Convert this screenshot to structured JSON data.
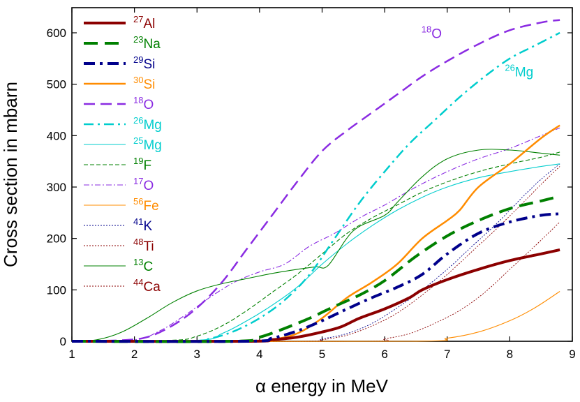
{
  "chart_data": {
    "type": "line",
    "xlabel": "α energy in MeV",
    "ylabel": "Cross section in mbarn",
    "xlim": [
      1,
      9
    ],
    "ylim": [
      0,
      650
    ],
    "xticks": [
      1,
      2,
      3,
      4,
      5,
      6,
      7,
      8,
      9
    ],
    "yticks": [
      0,
      100,
      200,
      300,
      400,
      500,
      600
    ],
    "grid": false,
    "legend_placement": "top-left",
    "series": [
      {
        "name": "Al",
        "mass": "27",
        "color": "#8b0000",
        "style": "solid-thick",
        "x": [
          1,
          3.8,
          4.2,
          4.6,
          5.0,
          5.3,
          5.6,
          6.0,
          6.4,
          6.6,
          7.0,
          7.5,
          8.0,
          8.5,
          8.8
        ],
        "y": [
          0,
          0,
          3,
          8,
          18,
          28,
          45,
          63,
          85,
          100,
          120,
          140,
          157,
          170,
          178
        ]
      },
      {
        "name": "Na",
        "mass": "23",
        "color": "#008000",
        "style": "long-dash-thick",
        "x": [
          1,
          3.6,
          4.0,
          4.4,
          4.8,
          5.2,
          5.6,
          6.0,
          6.5,
          7.0,
          7.5,
          8.0,
          8.5,
          8.8
        ],
        "y": [
          0,
          0,
          8,
          25,
          45,
          68,
          90,
          118,
          165,
          205,
          235,
          258,
          273,
          282
        ]
      },
      {
        "name": "Si",
        "mass": "29",
        "color": "#00008b",
        "style": "dashdot-thick",
        "x": [
          1,
          3.8,
          4.2,
          4.6,
          5.0,
          5.4,
          5.8,
          6.2,
          6.6,
          7.0,
          7.5,
          8.0,
          8.5,
          8.8
        ],
        "y": [
          0,
          0,
          6,
          20,
          40,
          63,
          85,
          105,
          130,
          170,
          210,
          232,
          245,
          248
        ]
      },
      {
        "name": "Si",
        "mass": "30",
        "color": "#ff8c00",
        "style": "solid",
        "x": [
          1,
          3.9,
          4.2,
          4.6,
          5.0,
          5.4,
          5.8,
          6.2,
          6.6,
          7.0,
          7.2,
          7.5,
          8.0,
          8.5,
          8.8
        ],
        "y": [
          0,
          0,
          3,
          15,
          45,
          85,
          115,
          150,
          200,
          235,
          255,
          300,
          345,
          395,
          420
        ]
      },
      {
        "name": "O",
        "mass": "18",
        "color": "#8a2be2",
        "style": "long-dash",
        "x": [
          1,
          1.8,
          2.2,
          2.6,
          3.0,
          3.4,
          3.8,
          4.2,
          4.6,
          5.0,
          5.4,
          5.8,
          6.2,
          6.6,
          7.0,
          7.5,
          8.0,
          8.5,
          8.8
        ],
        "y": [
          0,
          2,
          8,
          30,
          65,
          115,
          180,
          245,
          310,
          370,
          410,
          445,
          480,
          515,
          545,
          578,
          605,
          620,
          625
        ]
      },
      {
        "name": "Mg",
        "mass": "26",
        "color": "#00cdcd",
        "style": "dashdot",
        "x": [
          1,
          2.8,
          3.2,
          3.6,
          4.0,
          4.4,
          4.8,
          5.2,
          5.6,
          6.0,
          6.4,
          6.8,
          7.2,
          7.6,
          8.0,
          8.4,
          8.8
        ],
        "y": [
          0,
          0,
          5,
          20,
          45,
          80,
          130,
          200,
          270,
          330,
          385,
          430,
          475,
          515,
          550,
          575,
          600
        ]
      },
      {
        "name": "Mg",
        "mass": "25",
        "color": "#00cdcd",
        "style": "thin",
        "x": [
          1,
          3.0,
          3.4,
          3.8,
          4.2,
          4.6,
          5.0,
          5.4,
          5.8,
          6.2,
          6.6,
          7.0,
          7.5,
          8.0,
          8.5,
          8.8
        ],
        "y": [
          0,
          2,
          15,
          40,
          70,
          105,
          150,
          190,
          225,
          255,
          280,
          300,
          318,
          330,
          340,
          345
        ]
      },
      {
        "name": "F",
        "mass": "19",
        "color": "#008000",
        "style": "thin-dash",
        "x": [
          1,
          2.6,
          3.0,
          3.4,
          3.8,
          4.2,
          4.6,
          5.0,
          5.4,
          5.8,
          6.2,
          6.6,
          7.0,
          7.5,
          8.0,
          8.5,
          8.8
        ],
        "y": [
          0,
          2,
          10,
          30,
          60,
          95,
          130,
          170,
          210,
          240,
          265,
          290,
          310,
          330,
          345,
          358,
          368
        ]
      },
      {
        "name": "O",
        "mass": "17",
        "color": "#8a2be2",
        "style": "thin-dashdot",
        "x": [
          1,
          2.0,
          2.4,
          2.8,
          3.2,
          3.6,
          4.0,
          4.4,
          4.8,
          5.2,
          5.6,
          6.0,
          6.5,
          7.0,
          7.5,
          8.0,
          8.5,
          8.8
        ],
        "y": [
          0,
          3,
          20,
          50,
          85,
          115,
          135,
          150,
          185,
          210,
          240,
          265,
          300,
          330,
          355,
          375,
          400,
          415
        ]
      },
      {
        "name": "Fe",
        "mass": "56",
        "color": "#ff8c00",
        "style": "thin",
        "x": [
          1,
          6.4,
          7.0,
          7.5,
          8.0,
          8.4,
          8.8
        ],
        "y": [
          0,
          0,
          6,
          18,
          40,
          65,
          97
        ]
      },
      {
        "name": "K",
        "mass": "41",
        "color": "#00008b",
        "style": "thin-dot",
        "x": [
          1,
          4.6,
          5.0,
          5.4,
          5.8,
          6.2,
          6.6,
          7.0,
          7.4,
          7.8,
          8.2,
          8.5,
          8.8
        ],
        "y": [
          0,
          0,
          5,
          15,
          35,
          65,
          100,
          140,
          185,
          230,
          280,
          315,
          345
        ]
      },
      {
        "name": "Ti",
        "mass": "48",
        "color": "#8b0000",
        "style": "thin-dot",
        "x": [
          1,
          5.6,
          6.0,
          6.4,
          6.8,
          7.2,
          7.6,
          8.0,
          8.4,
          8.8
        ],
        "y": [
          0,
          0,
          5,
          15,
          35,
          60,
          95,
          140,
          185,
          232
        ]
      },
      {
        "name": "C",
        "mass": "13",
        "color": "#008000",
        "style": "thin",
        "x": [
          1,
          1.4,
          1.8,
          2.2,
          2.6,
          3.0,
          3.4,
          3.8,
          4.2,
          4.6,
          4.9,
          5.1,
          5.5,
          6.0,
          6.2,
          6.6,
          7.0,
          7.5,
          8.0,
          8.5,
          8.8
        ],
        "y": [
          0,
          3,
          18,
          45,
          75,
          98,
          112,
          122,
          132,
          140,
          145,
          148,
          215,
          245,
          270,
          320,
          355,
          372,
          372,
          366,
          362
        ]
      },
      {
        "name": "Ca",
        "mass": "44",
        "color": "#8b0000",
        "style": "thin-dot",
        "x": [
          1,
          4.6,
          5.0,
          5.4,
          5.8,
          6.2,
          6.6,
          7.0,
          7.4,
          7.8,
          8.2,
          8.5,
          8.8
        ],
        "y": [
          0,
          0,
          3,
          12,
          30,
          55,
          90,
          130,
          175,
          220,
          268,
          305,
          340
        ]
      }
    ],
    "annotations": [
      {
        "mass": "18",
        "text": "O",
        "color": "#8a2be2",
        "x": 6.75,
        "y": 590
      },
      {
        "mass": "26",
        "text": "Mg",
        "color": "#00cdcd",
        "x": 8.15,
        "y": 515
      }
    ]
  }
}
